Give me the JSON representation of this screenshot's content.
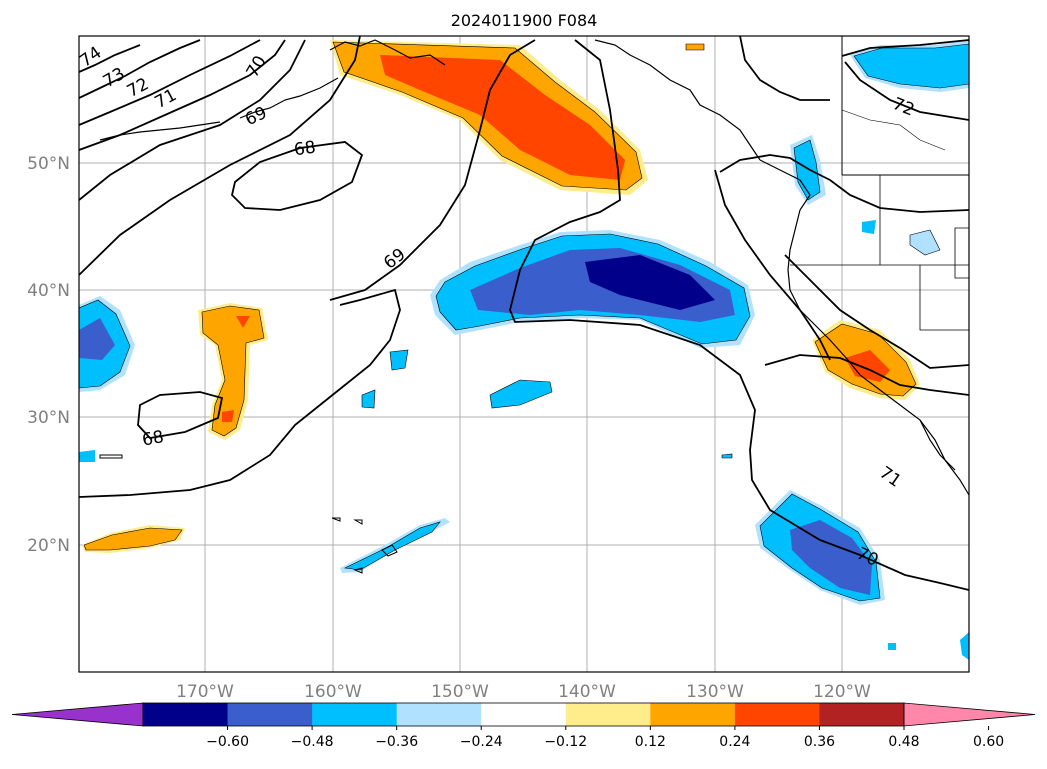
{
  "title": "2024011900 F084",
  "map": {
    "lon_labels": [
      "170°W",
      "160°W",
      "150°W",
      "140°W",
      "130°W",
      "120°W"
    ],
    "lat_labels": [
      "50°N",
      "40°N",
      "30°N",
      "20°N"
    ],
    "contour_labels": [
      "74",
      "73",
      "72",
      "71",
      "70",
      "69",
      "68",
      "69",
      "68",
      "72",
      "71",
      "70"
    ]
  },
  "colorbar": {
    "ticks": [
      "−0.60",
      "−0.48",
      "−0.36",
      "−0.24",
      "−0.12",
      "0.12",
      "0.24",
      "0.36",
      "0.48",
      "0.60"
    ],
    "colors": [
      "#9932cc",
      "#00008b",
      "#3a5fcd",
      "#00bfff",
      "#b0e2ff",
      "#ffffff",
      "#ffec8b",
      "#ffa500",
      "#ff4500",
      "#b22222",
      "#ff88aa"
    ]
  }
}
